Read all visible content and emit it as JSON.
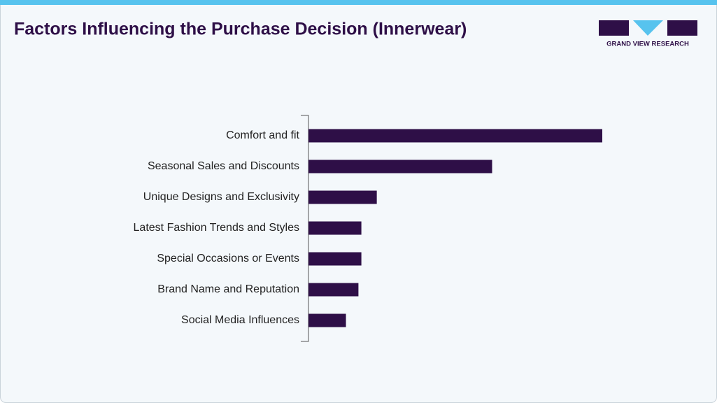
{
  "chart_data": {
    "type": "hbar",
    "title": "Factors Influencing the Purchase Decision (Innerwear)",
    "brand": "GRAND VIEW RESEARCH",
    "categories": [
      "Comfort and fit",
      "Seasonal Sales and Discounts",
      "Unique Designs and Exclusivity",
      "Latest Fashion Trends and Styles",
      "Special Occasions or Events",
      "Brand Name and Reputation",
      "Social Media Influences"
    ],
    "values": [
      40,
      25,
      9.3,
      7.2,
      7.2,
      6.8,
      5.1
    ],
    "color": "#2e0f47",
    "xlim": [
      0,
      40
    ]
  }
}
